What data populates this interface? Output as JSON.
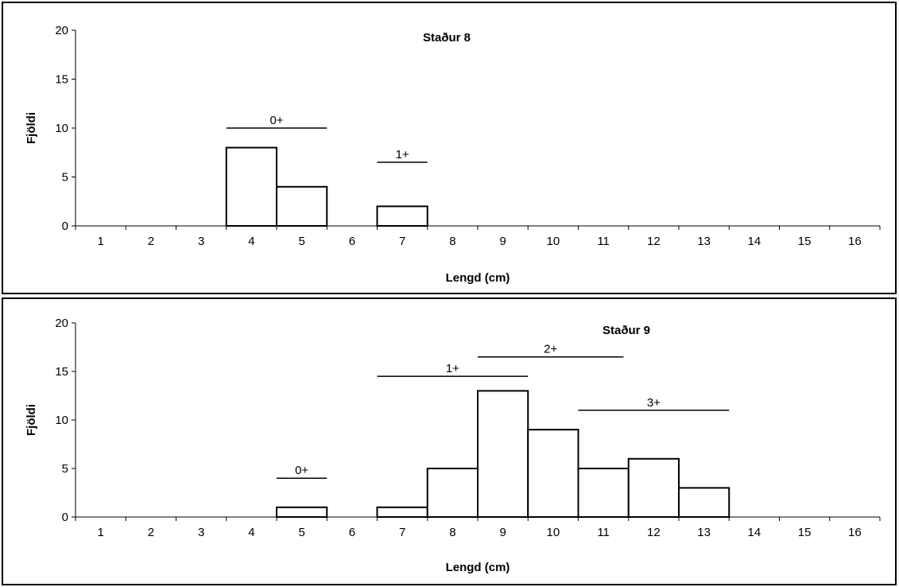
{
  "chart_data": [
    {
      "type": "bar",
      "title": "Staður 8",
      "xlabel": "Lengd (cm)",
      "ylabel": "Fjöldi",
      "ylim": [
        0,
        20
      ],
      "yticks": [
        0,
        5,
        10,
        15,
        20
      ],
      "categories": [
        "1",
        "2",
        "3",
        "4",
        "5",
        "6",
        "7",
        "8",
        "9",
        "10",
        "11",
        "12",
        "13",
        "14",
        "15",
        "16"
      ],
      "values": [
        0,
        0,
        0,
        8,
        4,
        0,
        2,
        0,
        0,
        0,
        0,
        0,
        0,
        0,
        0,
        0
      ],
      "bar_fill": "#ffffff",
      "bar_stroke": "#000000",
      "grid": false,
      "legend": "none",
      "annotations": [
        {
          "label": "0+",
          "x_start": 3.5,
          "x_end": 5.5,
          "y": 10
        },
        {
          "label": "1+",
          "x_start": 6.5,
          "x_end": 7.5,
          "y": 6.5
        }
      ]
    },
    {
      "type": "bar",
      "title": "Staður 9",
      "xlabel": "Lengd (cm)",
      "ylabel": "Fjöldi",
      "ylim": [
        0,
        20
      ],
      "yticks": [
        0,
        5,
        10,
        15,
        20
      ],
      "categories": [
        "1",
        "2",
        "3",
        "4",
        "5",
        "6",
        "7",
        "8",
        "9",
        "10",
        "11",
        "12",
        "13",
        "14",
        "15",
        "16"
      ],
      "values": [
        0,
        0,
        0,
        0,
        1,
        0,
        1,
        5,
        13,
        9,
        5,
        6,
        3,
        0,
        0,
        0
      ],
      "bar_fill": "#ffffff",
      "bar_stroke": "#000000",
      "grid": false,
      "legend": "none",
      "annotations": [
        {
          "label": "0+",
          "x_start": 4.5,
          "x_end": 5.5,
          "y": 4
        },
        {
          "label": "1+",
          "x_start": 6.5,
          "x_end": 9.5,
          "y": 14.5
        },
        {
          "label": "2+",
          "x_start": 8.5,
          "x_end": 11.4,
          "y": 16.5
        },
        {
          "label": "3+",
          "x_start": 10.5,
          "x_end": 13.5,
          "y": 11
        }
      ]
    }
  ]
}
